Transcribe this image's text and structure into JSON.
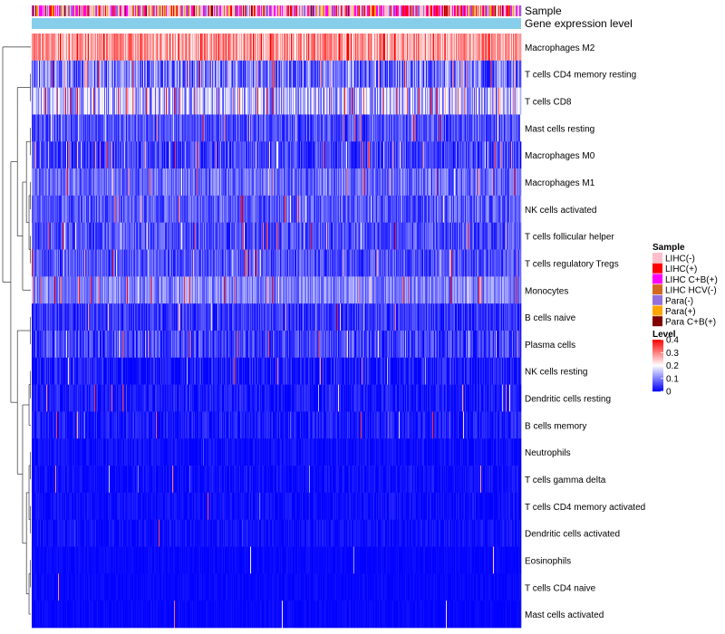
{
  "chart_data": {
    "type": "heatmap",
    "title": "",
    "annotation_tracks": [
      "Sample",
      "Gene expression level"
    ],
    "rows": [
      {
        "label": "Macrophages M2",
        "mean": 0.28,
        "spread": 0.07,
        "outlier_rate": 0.05
      },
      {
        "label": "T cells CD4 memory resting",
        "mean": 0.09,
        "spread": 0.08,
        "outlier_rate": 0.08
      },
      {
        "label": "T cells CD8",
        "mean": 0.14,
        "spread": 0.09,
        "outlier_rate": 0.12
      },
      {
        "label": "Mast cells resting",
        "mean": 0.06,
        "spread": 0.05,
        "outlier_rate": 0.06
      },
      {
        "label": "Macrophages M0",
        "mean": 0.05,
        "spread": 0.05,
        "outlier_rate": 0.08
      },
      {
        "label": "Macrophages M1",
        "mean": 0.08,
        "spread": 0.05,
        "outlier_rate": 0.04
      },
      {
        "label": "NK cells activated",
        "mean": 0.07,
        "spread": 0.05,
        "outlier_rate": 0.04
      },
      {
        "label": "T cells follicular helper",
        "mean": 0.06,
        "spread": 0.05,
        "outlier_rate": 0.04
      },
      {
        "label": "T cells regulatory  Tregs",
        "mean": 0.06,
        "spread": 0.05,
        "outlier_rate": 0.04
      },
      {
        "label": "Monocytes",
        "mean": 0.1,
        "spread": 0.05,
        "outlier_rate": 0.06
      },
      {
        "label": "B cells naive",
        "mean": 0.04,
        "spread": 0.04,
        "outlier_rate": 0.04
      },
      {
        "label": "Plasma cells",
        "mean": 0.05,
        "spread": 0.05,
        "outlier_rate": 0.05
      },
      {
        "label": "NK cells resting",
        "mean": 0.02,
        "spread": 0.04,
        "outlier_rate": 0.03
      },
      {
        "label": "Dendritic cells resting",
        "mean": 0.02,
        "spread": 0.03,
        "outlier_rate": 0.02
      },
      {
        "label": "B cells memory",
        "mean": 0.02,
        "spread": 0.03,
        "outlier_rate": 0.02
      },
      {
        "label": "Neutrophils",
        "mean": 0.01,
        "spread": 0.02,
        "outlier_rate": 0.01
      },
      {
        "label": "T cells gamma delta",
        "mean": 0.01,
        "spread": 0.02,
        "outlier_rate": 0.01
      },
      {
        "label": "T cells CD4 memory activated",
        "mean": 0.01,
        "spread": 0.02,
        "outlier_rate": 0.01
      },
      {
        "label": "Dendritic cells activated",
        "mean": 0.01,
        "spread": 0.02,
        "outlier_rate": 0.01
      },
      {
        "label": "Eosinophils",
        "mean": 0.005,
        "spread": 0.01,
        "outlier_rate": 0.005
      },
      {
        "label": "T cells CD4 naive",
        "mean": 0.005,
        "spread": 0.01,
        "outlier_rate": 0.005
      },
      {
        "label": "Mast cells activated",
        "mean": 0.005,
        "spread": 0.01,
        "outlier_rate": 0.005
      }
    ],
    "n_samples": 540,
    "sample_mix": [
      {
        "group": "LIHC(-)",
        "weight": 0.36
      },
      {
        "group": "LIHC(+)",
        "weight": 0.14
      },
      {
        "group": "LIHC C+B(+)",
        "weight": 0.18
      },
      {
        "group": "LIHC HCV(-)",
        "weight": 0.07
      },
      {
        "group": "Para(-)",
        "weight": 0.14
      },
      {
        "group": "Para(+)",
        "weight": 0.07
      },
      {
        "group": "Para C+B(+)",
        "weight": 0.04
      }
    ],
    "legend": {
      "sample_title": "Sample",
      "sample_items": [
        {
          "label": "LIHC(-)",
          "color": "#FFC0CB"
        },
        {
          "label": "LIHC(+)",
          "color": "#FF0000"
        },
        {
          "label": "LIHC C+B(+)",
          "color": "#FF00FF"
        },
        {
          "label": "LIHC HCV(-)",
          "color": "#D2691E"
        },
        {
          "label": "Para(-)",
          "color": "#9370DB"
        },
        {
          "label": "Para(+)",
          "color": "#FFA500"
        },
        {
          "label": "Para C+B(+)",
          "color": "#800000"
        }
      ],
      "level_title": "Level",
      "level_ticks": [
        {
          "label": "0.4",
          "value": 0.4
        },
        {
          "label": "0.3",
          "value": 0.3
        },
        {
          "label": "0.2",
          "value": 0.2
        },
        {
          "label": "0.1",
          "value": 0.1
        },
        {
          "label": "0",
          "value": 0
        }
      ],
      "level_range": [
        0,
        0.4
      ],
      "level_colors": {
        "low": "#0000FF",
        "mid": "#FFFFFF",
        "high": "#FF0000"
      }
    },
    "gene_expression_color": "#87CEEB"
  }
}
